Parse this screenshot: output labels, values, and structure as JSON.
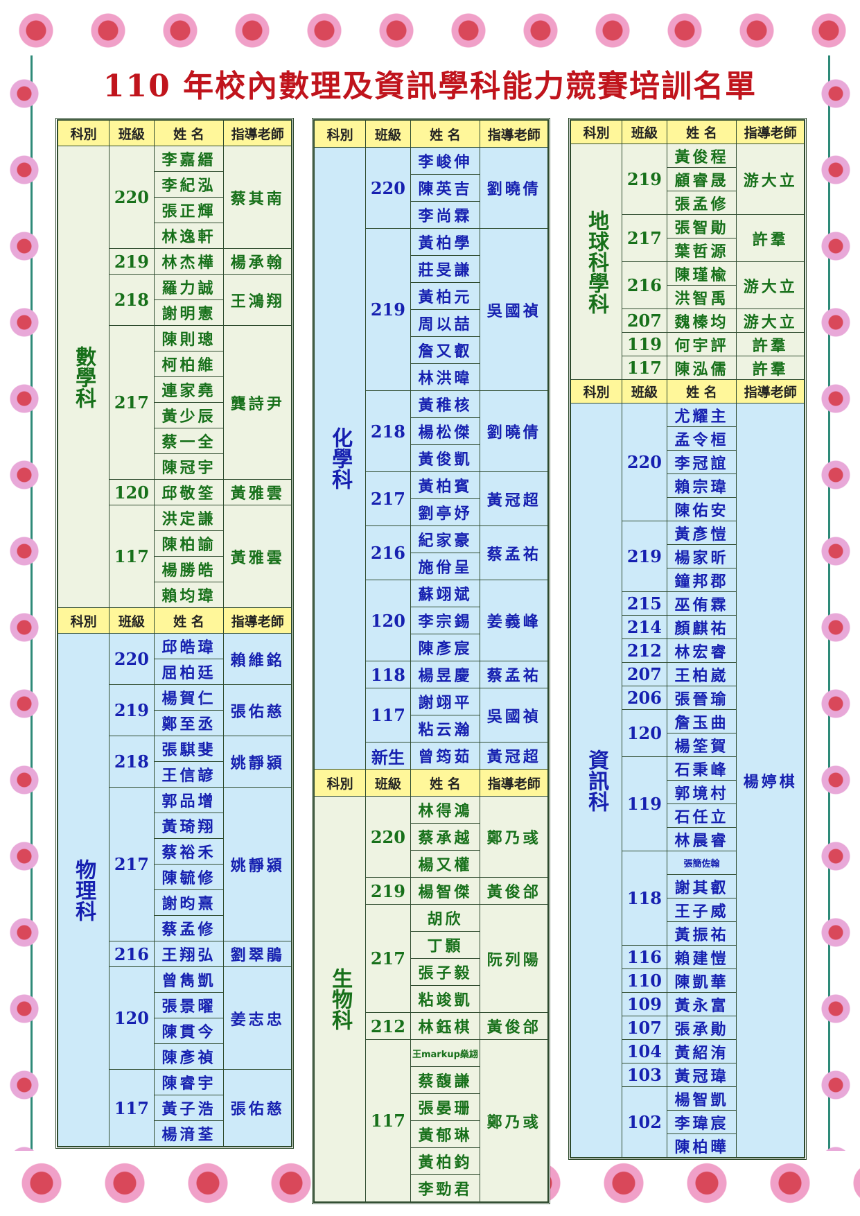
{
  "title": "110 年校內數理及資訊學科能力競賽培訓名單",
  "headers": {
    "subject": "科別",
    "class": "班級",
    "name": "姓  名",
    "teacher": "指導老師"
  },
  "colors": {
    "title": "#c0141c",
    "header_bg": "#fff79a",
    "green_bg": "#eef3e2",
    "green_text": "#17701a",
    "blue_bg": "#cdeaf9",
    "blue_text": "#1620b0"
  },
  "columns": [
    {
      "id": "col-left",
      "sections": [
        {
          "subject": "數學科",
          "theme": "g",
          "groups": [
            {
              "class": "220",
              "teacher": "蔡其南",
              "students": [
                "李嘉縉",
                "李紀泓",
                "張正輝",
                "林逸軒"
              ]
            },
            {
              "class": "219",
              "teacher": "楊承翰",
              "students": [
                "林杰樺"
              ]
            },
            {
              "class": "218",
              "teacher": "王鴻翔",
              "students": [
                "羅力誠",
                "謝明憲"
              ]
            },
            {
              "class": "217",
              "teacher": "龔詩尹",
              "students": [
                "陳則璁",
                "柯柏維",
                "連家堯",
                "黃少辰",
                "蔡一全",
                "陳冠宇"
              ]
            },
            {
              "class": "120",
              "teacher": "黃雅雲",
              "students": [
                "邱敬筌"
              ]
            },
            {
              "class": "117",
              "teacher": "黃雅雲",
              "students": [
                "洪定謙",
                "陳柏諭",
                "楊勝皓",
                "賴均瑋"
              ]
            }
          ]
        },
        {
          "subject": "物理科",
          "theme": "b",
          "groups": [
            {
              "class": "220",
              "teacher": "賴維銘",
              "students": [
                "邱皓瑋",
                "屈柏廷"
              ]
            },
            {
              "class": "219",
              "teacher": "張佑慈",
              "students": [
                "楊賀仁",
                "鄭至丞"
              ]
            },
            {
              "class": "218",
              "teacher": "姚靜潁",
              "students": [
                "張騏斐",
                "王信諺"
              ]
            },
            {
              "class": "217",
              "teacher": "姚靜潁",
              "students": [
                "郭品增",
                "黃琦翔",
                "蔡裕禾",
                "陳毓修",
                "謝昀熹",
                "蔡孟修"
              ]
            },
            {
              "class": "216",
              "teacher": "劉翠鵑",
              "students": [
                "王翔弘"
              ]
            },
            {
              "class": "120",
              "teacher": "姜志忠",
              "students": [
                "曾雋凱",
                "張景曜",
                "陳貫今",
                "陳彥禎"
              ]
            },
            {
              "class": "117",
              "teacher": "張佑慈",
              "students": [
                "陳睿宇",
                "黃子浩",
                "楊湇荃"
              ]
            }
          ]
        }
      ]
    },
    {
      "id": "col-mid",
      "sections": [
        {
          "subject": "化學科",
          "theme": "b",
          "groups": [
            {
              "class": "220",
              "teacher": "劉曉倩",
              "students": [
                "李峻伸",
                "陳英吉",
                "李尚霖"
              ]
            },
            {
              "class": "219",
              "teacher": "吳國禎",
              "students": [
                "黃柏學",
                "莊旻謙",
                "黃柏元",
                "周以喆",
                "詹又叡",
                "林洪暐"
              ]
            },
            {
              "class": "218",
              "teacher": "劉曉倩",
              "students": [
                "黃稚核",
                "楊松傑",
                "黃俊凱"
              ]
            },
            {
              "class": "217",
              "teacher": "黃冠超",
              "students": [
                "黃柏賓",
                "劉亭妤"
              ]
            },
            {
              "class": "216",
              "teacher": "蔡孟祐",
              "students": [
                "紀家豪",
                "施佾呈"
              ]
            },
            {
              "class": "120",
              "teacher": "姜義峰",
              "students": [
                "蘇翊斌",
                "李宗錫",
                "陳彥宸"
              ]
            },
            {
              "class": "118",
              "teacher": "蔡孟祐",
              "students": [
                "楊昱慶"
              ]
            },
            {
              "class": "117",
              "teacher": "吳國禎",
              "students": [
                "謝翊平",
                "粘云瀚"
              ]
            },
            {
              "class": "新生",
              "teacher": "黃冠超",
              "students": [
                "曾筠茹"
              ]
            }
          ]
        },
        {
          "subject": "生物科",
          "theme": "g",
          "groups": [
            {
              "class": "220",
              "teacher": "鄭乃彧",
              "students": [
                "林得鴻",
                "蔡承越",
                "楊又權"
              ]
            },
            {
              "class": "219",
              "teacher": "黃俊郃",
              "students": [
                "楊智傑"
              ]
            },
            {
              "class": "217",
              "teacher": "阮列陽",
              "students": [
                "胡欣",
                "丁顥",
                "張子毅",
                "粘竣凱"
              ]
            },
            {
              "class": "212",
              "teacher": "黃俊郃",
              "students": [
                "林鈺棋"
              ]
            },
            {
              "class": "117",
              "teacher": "鄭乃彧",
              "students": [
                "王markup燊翃",
                "蔡馥謙",
                "張晏珊",
                "黃郁琳",
                "黃柏鈞",
                "李勁君"
              ]
            }
          ]
        }
      ]
    },
    {
      "id": "col-right",
      "sections": [
        {
          "subject": "地球科學科",
          "theme": "g",
          "groups": [
            {
              "class": "219",
              "teacher": "游大立",
              "students": [
                "黃俊程",
                "顧睿晟",
                "張孟修"
              ]
            },
            {
              "class": "217",
              "teacher": "許羣",
              "students": [
                "張智勛",
                "葉哲源"
              ]
            },
            {
              "class": "216",
              "teacher": "游大立",
              "students": [
                "陳瑾楡",
                "洪智禹"
              ]
            },
            {
              "class": "207",
              "teacher": "游大立",
              "students": [
                "魏榛均"
              ]
            },
            {
              "class": "119",
              "teacher": "許羣",
              "students": [
                "何宇評"
              ]
            },
            {
              "class": "117",
              "teacher": "許羣",
              "students": [
                "陳泓儒"
              ]
            }
          ]
        },
        {
          "subject": "資訊科",
          "theme": "b",
          "teacher_all": "楊婷棋",
          "groups": [
            {
              "class": "220",
              "students": [
                "尤耀主",
                "孟令桓",
                "李冠誼",
                "賴宗瑋",
                "陳佑安"
              ]
            },
            {
              "class": "219",
              "students": [
                "黃彥愷",
                "楊家昕",
                "鐘邦郡"
              ]
            },
            {
              "class": "215",
              "students": [
                "巫侑霖"
              ]
            },
            {
              "class": "214",
              "students": [
                "顏麒祐"
              ]
            },
            {
              "class": "212",
              "students": [
                "林宏睿"
              ]
            },
            {
              "class": "207",
              "students": [
                "王柏崴"
              ]
            },
            {
              "class": "206",
              "students": [
                "張晉瑜"
              ]
            },
            {
              "class": "120",
              "students": [
                "詹玉曲",
                "楊筌賀"
              ]
            },
            {
              "class": "119",
              "students": [
                "石秉峰",
                "郭境村",
                "石任立",
                "林晨睿"
              ]
            },
            {
              "class": "118",
              "students": [
                "張簡佐翰",
                "謝其叡",
                "王子威",
                "黃振祐"
              ]
            },
            {
              "class": "116",
              "students": [
                "賴建愷"
              ]
            },
            {
              "class": "110",
              "students": [
                "陳凱華"
              ]
            },
            {
              "class": "109",
              "students": [
                "黃永富"
              ]
            },
            {
              "class": "107",
              "students": [
                "張承勛"
              ]
            },
            {
              "class": "104",
              "students": [
                "黃紹洧"
              ]
            },
            {
              "class": "103",
              "students": [
                "黃冠瑋"
              ]
            },
            {
              "class": "102",
              "students": [
                "楊智凱",
                "李瑋宸",
                "陳柏曄"
              ]
            }
          ]
        }
      ]
    }
  ]
}
